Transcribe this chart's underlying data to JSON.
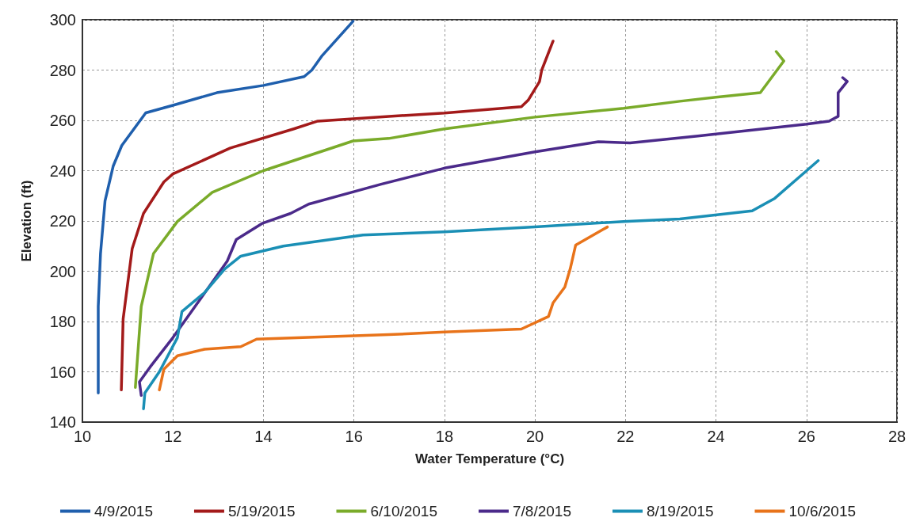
{
  "chart_data": {
    "type": "line",
    "xlabel": "Water Temperature (°C)",
    "ylabel": "Elevation (ft)",
    "xlim": [
      10,
      28
    ],
    "xticks": [
      10,
      12,
      14,
      16,
      18,
      20,
      22,
      24,
      26,
      28
    ],
    "ylim": [
      140,
      300
    ],
    "yticks": [
      140,
      160,
      180,
      200,
      220,
      240,
      260,
      280,
      300
    ],
    "grid": true,
    "legend": "bottom",
    "marker": "none",
    "line_style": "solid",
    "series": [
      {
        "name": "4/9/2015",
        "color": "#1f5fad",
        "x": [
          10.35,
          10.35,
          10.4,
          10.5,
          10.68,
          10.87,
          11.4,
          12,
          12.97,
          14,
          14.9,
          15.07,
          15.3,
          15.98
        ],
        "values": [
          151.6,
          186,
          207,
          228,
          241.8,
          250,
          263,
          266,
          271,
          273.9,
          277.4,
          280,
          285.8,
          299.4
        ]
      },
      {
        "name": "5/19/2015",
        "color": "#a31a1a",
        "x": [
          10.86,
          10.9,
          11.1,
          11.35,
          11.8,
          12,
          13.27,
          14.67,
          15.2,
          16.77,
          18,
          19.7,
          19.85,
          20.1,
          20.15,
          20.4
        ],
        "values": [
          152.8,
          181,
          209,
          223,
          235.5,
          238.7,
          249,
          256.6,
          259.7,
          261.6,
          262.9,
          265.4,
          268,
          275.4,
          280,
          291.5
        ]
      },
      {
        "name": "6/10/2015",
        "color": "#7aab2a",
        "x": [
          11.17,
          11.3,
          11.57,
          12.1,
          12.87,
          14,
          15.98,
          16.77,
          18,
          20,
          21.96,
          23.2,
          24,
          24.98,
          25.5,
          25.33
        ],
        "values": [
          153.8,
          186,
          207,
          219.8,
          231.4,
          240,
          251.8,
          252.8,
          256.6,
          261.3,
          264.8,
          267.6,
          269.2,
          271,
          283.6,
          287.4
        ]
      },
      {
        "name": "7/8/2015",
        "color": "#4b2a8a",
        "x": [
          11.3,
          11.26,
          11.5,
          12,
          12.57,
          13.2,
          13.4,
          13.97,
          14.6,
          15,
          16.6,
          18,
          20,
          21.4,
          22.1,
          23.6,
          26,
          26.5,
          26.7,
          26.7,
          26.9,
          26.8
        ],
        "values": [
          150.6,
          156,
          162,
          173.6,
          188,
          204,
          212.6,
          219,
          223,
          226.7,
          234.6,
          241,
          247.5,
          251.5,
          251,
          253.8,
          258.5,
          259.7,
          261.6,
          271,
          275.5,
          277
        ]
      },
      {
        "name": "8/19/2015",
        "color": "#1a8fb5",
        "x": [
          11.35,
          11.38,
          11.7,
          12.1,
          12.2,
          12.7,
          13.15,
          13.5,
          14.44,
          16.2,
          18,
          20,
          21.96,
          23.2,
          24.8,
          25.3,
          26.26
        ],
        "values": [
          145.3,
          151.6,
          160,
          173.6,
          184,
          191.5,
          201,
          206,
          210,
          214.4,
          215.7,
          217.6,
          219.8,
          220.8,
          224,
          229,
          244
        ]
      },
      {
        "name": "10/6/2015",
        "color": "#e8731a",
        "x": [
          11.7,
          11.8,
          12.1,
          12.7,
          13.5,
          13.85,
          16.77,
          18,
          19.7,
          20.3,
          20.4,
          20.66,
          20.78,
          20.9,
          21.6
        ],
        "values": [
          152.8,
          161,
          166.4,
          169,
          170,
          173,
          174.8,
          175.8,
          177,
          182,
          187.4,
          193.7,
          201,
          210.4,
          217.6
        ]
      }
    ]
  }
}
